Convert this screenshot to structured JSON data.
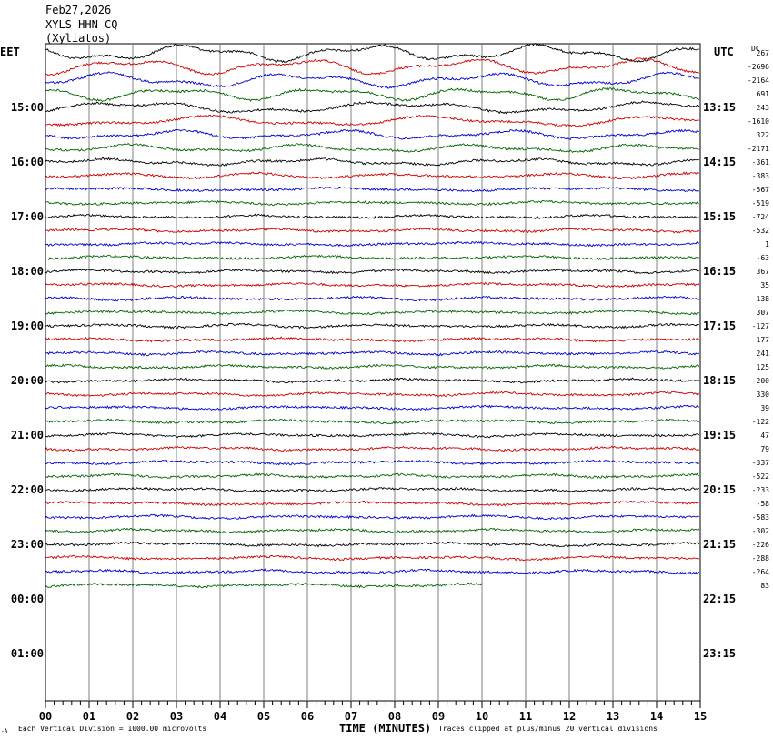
{
  "header": {
    "date": "Feb27,2026",
    "station_line": "XYLS HHN CQ --",
    "location": "(Xyliatos)"
  },
  "labels": {
    "left_tz": "EET",
    "right_tz": "UTC",
    "dc_header": "DC",
    "x_axis_title": "TIME (MINUTES)",
    "scale_note": "Each Vertical Division = 1000.00 microvolts",
    "clip_note": "Traces clipped at plus/minus 20 vertical divisions",
    "corner_mark": "-A"
  },
  "chart_data": {
    "type": "line",
    "xlabel": "TIME (MINUTES)",
    "x_ticks": [
      "00",
      "01",
      "02",
      "03",
      "04",
      "05",
      "06",
      "07",
      "08",
      "09",
      "10",
      "11",
      "12",
      "13",
      "14",
      "15"
    ],
    "xlim": [
      0,
      15
    ],
    "minutes_per_line": 15,
    "left_hour_labels": [
      "15:00",
      "16:00",
      "17:00",
      "18:00",
      "19:00",
      "20:00",
      "21:00",
      "22:00",
      "23:00",
      "00:00",
      "01:00"
    ],
    "right_hour_labels": [
      "13:15",
      "14:15",
      "15:15",
      "16:15",
      "17:15",
      "18:15",
      "19:15",
      "20:15",
      "21:15",
      "22:15",
      "23:15"
    ],
    "trace_colors": [
      "#000000",
      "#cc0000",
      "#0000cc",
      "#006600"
    ],
    "dc_offsets": [
      "267",
      "-2696",
      "-2164",
      "691",
      "243",
      "-1610",
      "322",
      "-2171",
      "-361",
      "-383",
      "-567",
      "-519",
      "-724",
      "-532",
      "1",
      "-63",
      "367",
      "35",
      "138",
      "307",
      "-127",
      "177",
      "241",
      "125",
      "-200",
      "330",
      "39",
      "-122",
      "47",
      "79",
      "-337",
      "-522",
      "-233",
      "-58",
      "-583",
      "-302",
      "-226",
      "-288",
      "-264",
      "83"
    ],
    "last_trace_end_minute": 10
  }
}
